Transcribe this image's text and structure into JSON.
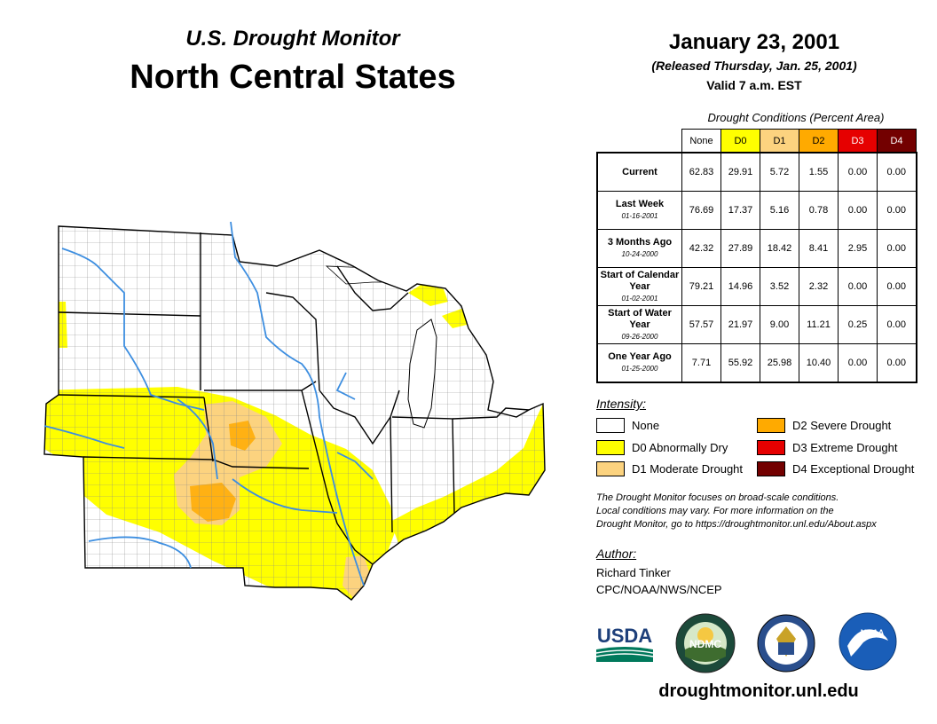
{
  "header": {
    "subtitle": "U.S. Drought Monitor",
    "region": "North Central States",
    "date": "January 23, 2001",
    "released": "(Released Thursday, Jan. 25, 2001)",
    "valid": "Valid 7 a.m. EST"
  },
  "table": {
    "caption": "Drought Conditions (Percent Area)",
    "columns": [
      "None",
      "D0",
      "D1",
      "D2",
      "D3",
      "D4"
    ],
    "rows": [
      {
        "label": "Current",
        "sub": "",
        "values": [
          "62.83",
          "29.91",
          "5.72",
          "1.55",
          "0.00",
          "0.00"
        ]
      },
      {
        "label": "Last Week",
        "sub": "01-16-2001",
        "values": [
          "76.69",
          "17.37",
          "5.16",
          "0.78",
          "0.00",
          "0.00"
        ]
      },
      {
        "label": "3 Months Ago",
        "sub": "10-24-2000",
        "values": [
          "42.32",
          "27.89",
          "18.42",
          "8.41",
          "2.95",
          "0.00"
        ]
      },
      {
        "label": "Start of Calendar Year",
        "sub": "01-02-2001",
        "values": [
          "79.21",
          "14.96",
          "3.52",
          "2.32",
          "0.00",
          "0.00"
        ]
      },
      {
        "label": "Start of Water Year",
        "sub": "09-26-2000",
        "values": [
          "57.57",
          "21.97",
          "9.00",
          "11.21",
          "0.25",
          "0.00"
        ]
      },
      {
        "label": "One Year Ago",
        "sub": "01-25-2000",
        "values": [
          "7.71",
          "55.92",
          "25.98",
          "10.40",
          "0.00",
          "0.00"
        ]
      }
    ]
  },
  "legend": {
    "title": "Intensity:",
    "items": [
      {
        "label": "None",
        "color": "#ffffff"
      },
      {
        "label": "D0 Abnormally Dry",
        "color": "#ffff00"
      },
      {
        "label": "D1 Moderate Drought",
        "color": "#fcd37f"
      },
      {
        "label": "D2 Severe Drought",
        "color": "#ffaa00"
      },
      {
        "label": "D3 Extreme Drought",
        "color": "#e60000"
      },
      {
        "label": "D4 Exceptional Drought",
        "color": "#730000"
      }
    ]
  },
  "note": {
    "line1": "The Drought Monitor focuses on broad-scale conditions.",
    "line2": "Local conditions may vary. For more information on the",
    "line3": "Drought Monitor, go to https://droughtmonitor.unl.edu/About.aspx"
  },
  "author": {
    "title": "Author:",
    "name": "Richard Tinker",
    "org": "CPC/NOAA/NWS/NCEP"
  },
  "logos": {
    "usda": "USDA",
    "ndmc": "NDMC",
    "noaa": "NOAA"
  },
  "website": "droughtmonitor.unl.edu",
  "colors": {
    "water": "#3d8ee0",
    "border": "#000000",
    "county": "#888888"
  }
}
